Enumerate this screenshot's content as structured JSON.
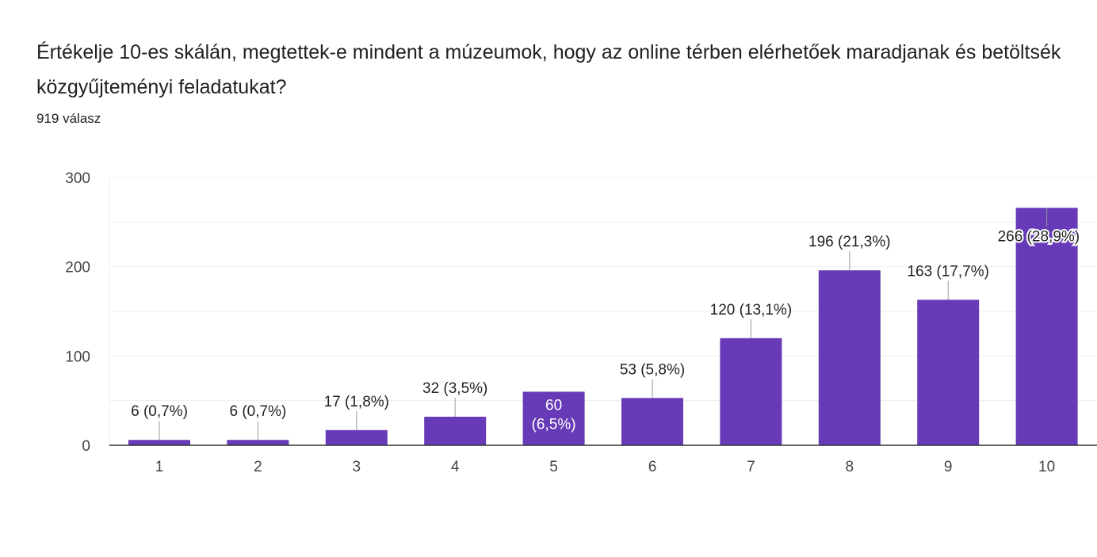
{
  "question": {
    "title": "Értékelje 10-es skálán, megtettek-e mindent a múzeumok, hogy az online térben elérhetőek maradjanak és betöltsék közgyűjteményi feladatukat?",
    "response_count": "919 válasz"
  },
  "chart_data": {
    "type": "bar",
    "title": "Értékelje 10-es skálán, megtettek-e mindent a múzeumok, hogy az online térben elérhetőek maradjanak és betöltsék közgyűjteményi feladatukat?",
    "subtitle": "919 válasz",
    "categories": [
      "1",
      "2",
      "3",
      "4",
      "5",
      "6",
      "7",
      "8",
      "9",
      "10"
    ],
    "values": [
      6,
      6,
      17,
      32,
      60,
      53,
      120,
      196,
      163,
      266
    ],
    "labels": [
      "6 (0,7%)",
      "6 (0,7%)",
      "17 (1,8%)",
      "32 (3,5%)",
      "60 (6,5%)",
      "53 (5,8%)",
      "120 (13,1%)",
      "196 (21,3%)",
      "163 (17,7%)",
      "266 (28,9%)"
    ],
    "yticks": [
      "0",
      "100",
      "200",
      "300"
    ],
    "ylim": [
      0,
      300
    ],
    "xlabel": "",
    "ylabel": "",
    "grid": true,
    "bar_color": "#673ab7"
  }
}
